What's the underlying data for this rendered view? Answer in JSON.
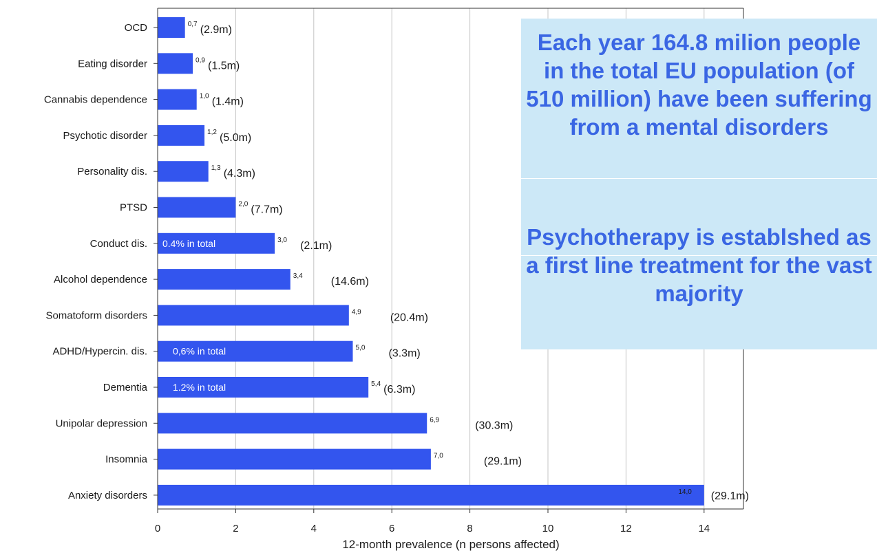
{
  "colors": {
    "bar": "#3355ee",
    "box_bg": "#cce8f7",
    "box_text": "#3a66e3"
  },
  "info_box": {
    "paragraph1": "Each year 164.8 milion people in the total EU population (of 510 million) have been suffering from a mental disorders",
    "paragraph2": "Psychotherapy is establshed as a first line treatment for the vast majority"
  },
  "chart_data": {
    "type": "bar",
    "orientation": "horizontal",
    "title": "",
    "xlabel": "12-month prevalence  (n persons affected)",
    "ylabel": "",
    "xlim": [
      0,
      15
    ],
    "xticks": [
      "0",
      "2",
      "4",
      "6",
      "8",
      "10",
      "12",
      "14"
    ],
    "grid": "vertical",
    "categories": [
      "OCD",
      "Eating disorder",
      "Cannabis dependence",
      "Psychotic disorder",
      "Personality dis.",
      "PTSD",
      "Conduct dis.",
      "Alcohol dependence",
      "Somatoform disorders",
      "ADHD/Hypercin. dis.",
      "Dementia",
      "Unipolar depression",
      "Insomnia",
      "Anxiety disorders"
    ],
    "values": [
      0.7,
      0.9,
      1.0,
      1.2,
      1.3,
      2.0,
      3.0,
      3.4,
      4.9,
      5.0,
      5.4,
      6.9,
      7.0,
      14.0
    ],
    "value_labels": [
      "0,7",
      "0,9",
      "1,0",
      "1,2",
      "1,3",
      "2,0",
      "3,0",
      "3,4",
      "4,9",
      "5,0",
      "5,4",
      "6,9",
      "7,0",
      "14,0"
    ],
    "persons_affected": [
      "(2.9m)",
      "(1.5m)",
      "(1.4m)",
      "(5.0m)",
      "(4.3m)",
      "(7.7m)",
      "(2.1m)",
      "(14.6m)",
      "(20.4m)",
      "(3.3m)",
      "(6.3m)",
      "(30.3m)",
      "(29.1m)",
      "(29.1m)"
    ],
    "in_bar_notes": [
      "",
      "",
      "",
      "",
      "",
      "",
      "0.4% in total",
      "",
      "",
      "0,6% in total",
      "1.2% in total",
      "",
      "",
      ""
    ]
  }
}
